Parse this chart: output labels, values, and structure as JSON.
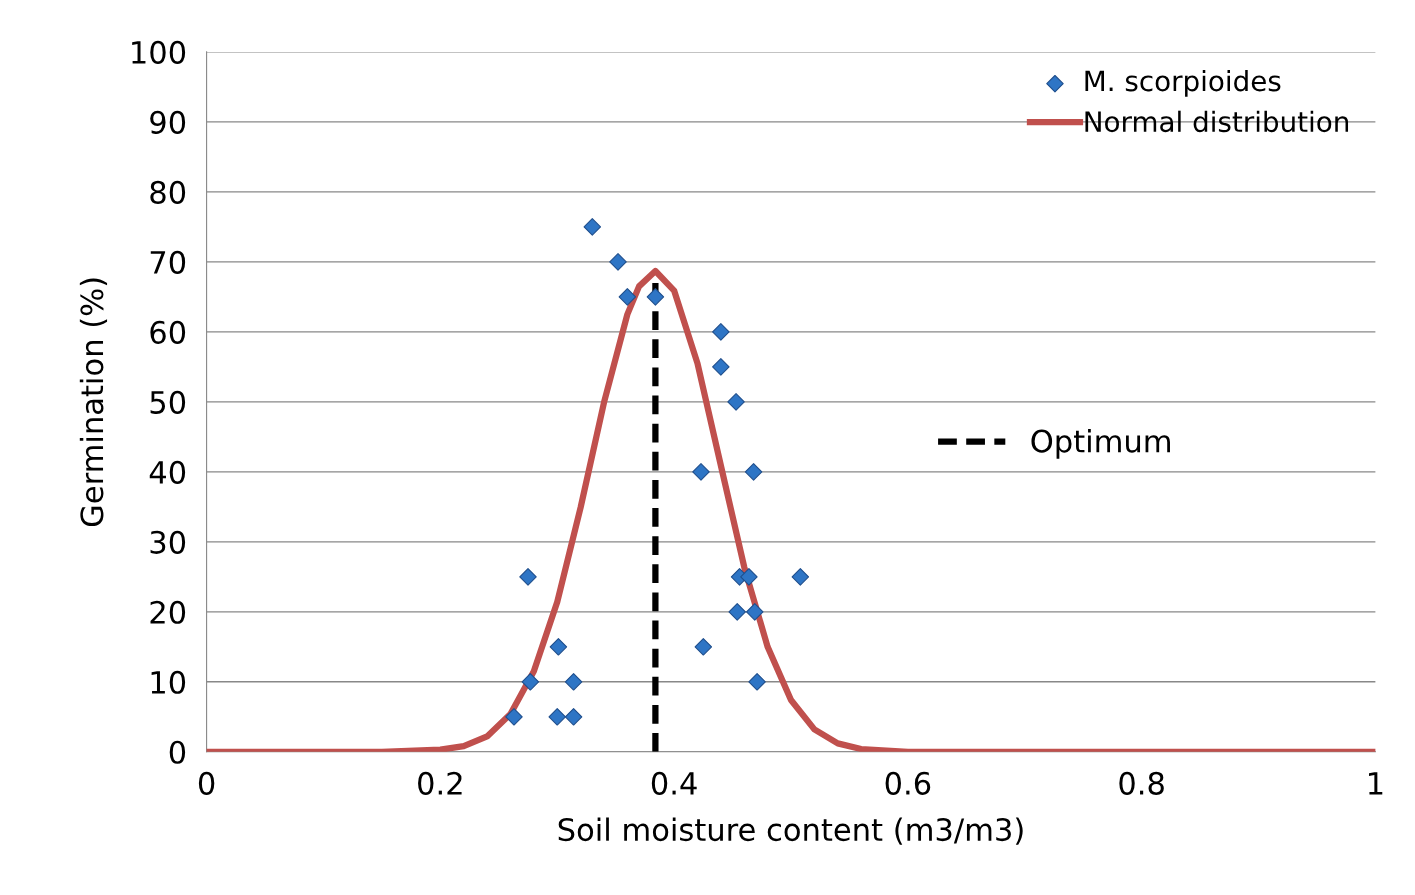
{
  "chart_data": {
    "type": "scatter",
    "xlabel": "Soil moisture content (m3/m3)",
    "ylabel": "Germination (%)",
    "xlim": [
      0,
      1
    ],
    "xticks": [
      0,
      0.2,
      0.4,
      0.6,
      0.8,
      1
    ],
    "ylim": [
      0,
      100
    ],
    "yticks": [
      0,
      10,
      20,
      30,
      40,
      50,
      60,
      70,
      80,
      90,
      100
    ],
    "grid": "y",
    "legend": "top right",
    "marker": "diamond",
    "series": [
      {
        "name": "M. scorpioides",
        "color": "#2e75c5",
        "x": [
          0.33,
          0.352,
          0.36,
          0.384,
          0.44,
          0.44,
          0.453,
          0.423,
          0.468,
          0.275,
          0.456,
          0.464,
          0.508,
          0.454,
          0.469,
          0.301,
          0.425,
          0.277,
          0.314,
          0.471,
          0.263,
          0.3,
          0.314
        ],
        "values": [
          75,
          70,
          65,
          65,
          60,
          55,
          50,
          40,
          40,
          25,
          25,
          25,
          25,
          20,
          20,
          15,
          15,
          10,
          10,
          10,
          5,
          5,
          5
        ]
      },
      {
        "name": "Normal distribution",
        "type": "line",
        "color": "#c0504d",
        "marker": "none",
        "x": [
          0,
          0.1,
          0.15,
          0.2,
          0.22,
          0.24,
          0.26,
          0.28,
          0.3,
          0.32,
          0.34,
          0.36,
          0.37,
          0.384,
          0.4,
          0.42,
          0.44,
          0.46,
          0.48,
          0.5,
          0.52,
          0.54,
          0.56,
          0.6,
          0.7,
          0.8,
          1
        ],
        "values": [
          0,
          0,
          0,
          0.3,
          0.8,
          2.2,
          5.4,
          11.5,
          21.4,
          34.9,
          49.9,
          62.5,
          66.5,
          68.7,
          65.9,
          55.5,
          40.9,
          26.4,
          15,
          7.4,
          3.2,
          1.2,
          0.4,
          0,
          0,
          0,
          0
        ]
      },
      {
        "name": "Optimum",
        "type": "line",
        "color": "#000000",
        "marker": "none",
        "line_style": "dashed",
        "x": [
          0.384,
          0.384
        ],
        "values": [
          0,
          67
        ]
      }
    ]
  }
}
